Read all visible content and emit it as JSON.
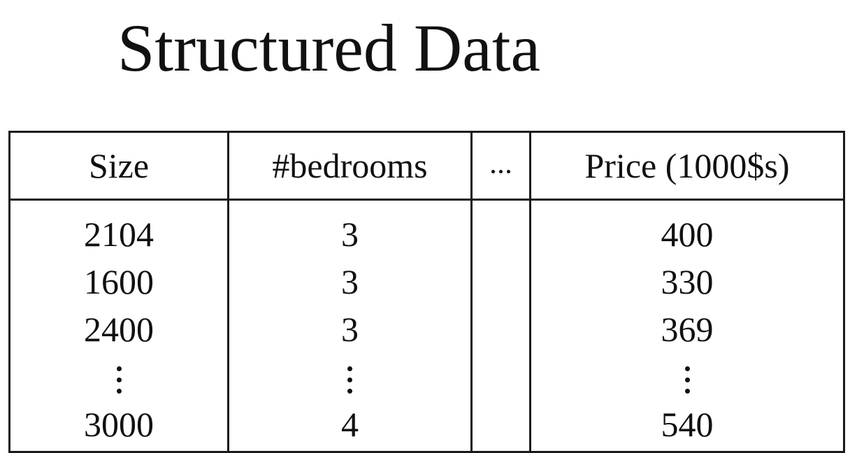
{
  "title": "Structured Data",
  "table": {
    "headers": {
      "size": "Size",
      "bedrooms": "#bedrooms",
      "price": "Price (1000$s)"
    },
    "columns": {
      "size": [
        "2104",
        "1600",
        "2400",
        "3000"
      ],
      "bedrooms": [
        "3",
        "3",
        "3",
        "4"
      ],
      "price": [
        "400",
        "330",
        "369",
        "540"
      ]
    }
  }
}
